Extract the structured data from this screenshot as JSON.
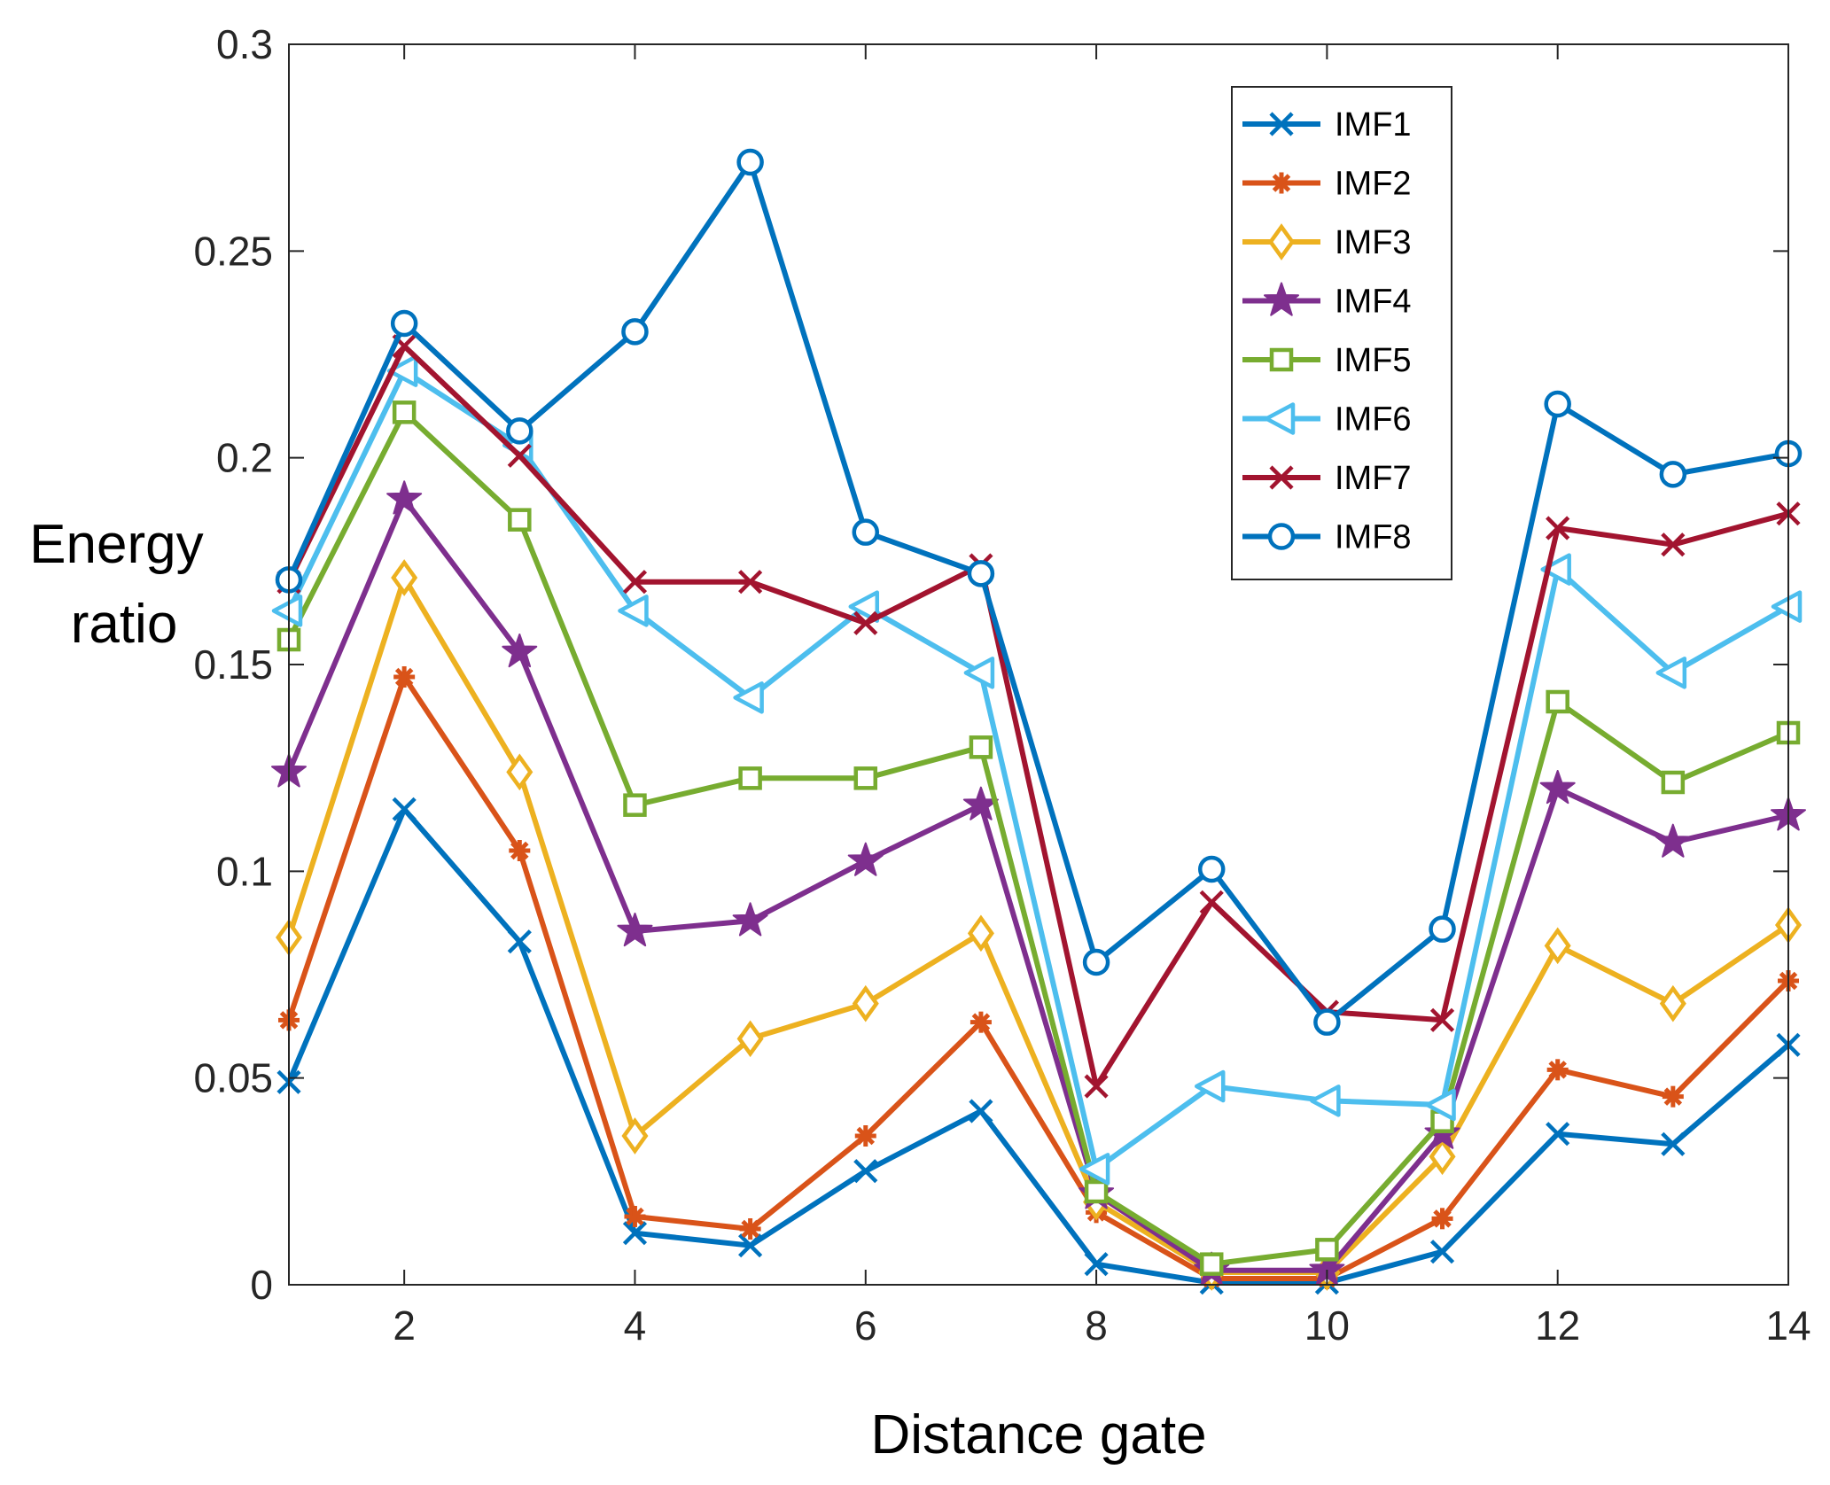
{
  "chart_data": {
    "type": "line",
    "title": "",
    "xlabel": "Distance gate",
    "ylabel_lines": [
      "Energy",
      "ratio"
    ],
    "xlim": [
      1,
      14
    ],
    "ylim": [
      0,
      0.3
    ],
    "xticks": [
      2,
      4,
      6,
      8,
      10,
      12,
      14
    ],
    "xtick_labels": [
      "2",
      "4",
      "6",
      "8",
      "10",
      "12",
      "14"
    ],
    "yticks": [
      0,
      0.05,
      0.1,
      0.15,
      0.2,
      0.25,
      0.3
    ],
    "ytick_labels": [
      "0",
      "0.05",
      "0.1",
      "0.15",
      "0.2",
      "0.25",
      "0.3"
    ],
    "grid": false,
    "legend_position": "top-right",
    "x": [
      1,
      2,
      3,
      4,
      5,
      6,
      7,
      8,
      9,
      10,
      11,
      12,
      13,
      14
    ],
    "series": [
      {
        "name": "IMF1",
        "color": "#0072BD",
        "marker": "x",
        "values": [
          0.049,
          0.115,
          0.083,
          0.0125,
          0.0095,
          0.0275,
          0.042,
          0.005,
          0.0005,
          0.0005,
          0.008,
          0.0365,
          0.034,
          0.058
        ]
      },
      {
        "name": "IMF2",
        "color": "#D95319",
        "marker": "asterisk",
        "values": [
          0.064,
          0.147,
          0.105,
          0.0165,
          0.0135,
          0.036,
          0.0635,
          0.0175,
          0.0015,
          0.0015,
          0.016,
          0.052,
          0.0455,
          0.0735
        ]
      },
      {
        "name": "IMF3",
        "color": "#EDB120",
        "marker": "diamond",
        "values": [
          0.084,
          0.171,
          0.124,
          0.036,
          0.0595,
          0.068,
          0.085,
          0.02,
          0.003,
          0.003,
          0.031,
          0.082,
          0.068,
          0.087
        ]
      },
      {
        "name": "IMF4",
        "color": "#7E2F8E",
        "marker": "star",
        "values": [
          0.124,
          0.19,
          0.153,
          0.0855,
          0.088,
          0.1025,
          0.116,
          0.022,
          0.0035,
          0.0035,
          0.0365,
          0.12,
          0.107,
          0.1135
        ]
      },
      {
        "name": "IMF5",
        "color": "#77AC30",
        "marker": "square",
        "values": [
          0.156,
          0.211,
          0.185,
          0.116,
          0.1225,
          0.1225,
          0.13,
          0.0225,
          0.005,
          0.0085,
          0.0395,
          0.141,
          0.1215,
          0.1335
        ]
      },
      {
        "name": "IMF6",
        "color": "#4DBEEE",
        "marker": "triangle-left",
        "values": [
          0.163,
          0.221,
          0.203,
          0.163,
          0.142,
          0.164,
          0.148,
          0.028,
          0.048,
          0.0445,
          0.0435,
          0.173,
          0.148,
          0.164
        ]
      },
      {
        "name": "IMF7",
        "color": "#A2142F",
        "marker": "x",
        "values": [
          0.17,
          0.227,
          0.2005,
          0.17,
          0.17,
          0.16,
          0.174,
          0.048,
          0.0925,
          0.066,
          0.064,
          0.183,
          0.179,
          0.1865
        ]
      },
      {
        "name": "IMF8",
        "color": "#0072BD",
        "marker": "circle",
        "values": [
          0.1705,
          0.2325,
          0.2065,
          0.2305,
          0.2715,
          0.182,
          0.172,
          0.078,
          0.1005,
          0.0635,
          0.086,
          0.213,
          0.196,
          0.201
        ]
      }
    ]
  }
}
